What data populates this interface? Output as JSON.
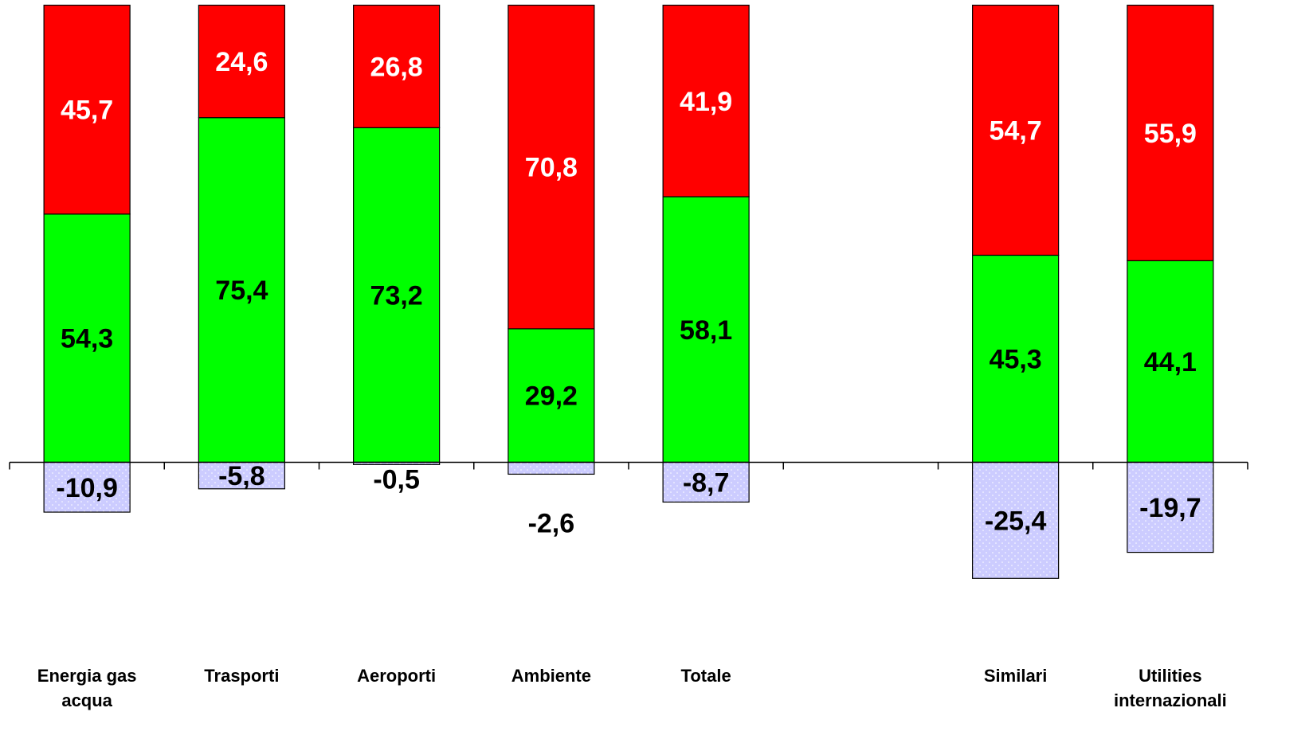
{
  "chart_data": {
    "type": "bar",
    "stacked": true,
    "categories": [
      [
        "Energia gas",
        "acqua"
      ],
      [
        "Trasporti"
      ],
      [
        "Aeroporti"
      ],
      [
        "Ambiente"
      ],
      [
        "Totale"
      ],
      [],
      [
        "Similari"
      ],
      [
        "Utilities",
        "internazionali"
      ]
    ],
    "series": [
      {
        "color": "#00ff00",
        "label_color": "#000000",
        "values": [
          54.3,
          75.4,
          73.2,
          29.2,
          58.1,
          null,
          45.3,
          44.1
        ],
        "labels": [
          "54,3",
          "75,4",
          "73,2",
          "29,2",
          "58,1",
          null,
          "45,3",
          "44,1"
        ]
      },
      {
        "color": "#ff0000",
        "label_color": "#ffffff",
        "values": [
          45.7,
          24.6,
          26.8,
          70.8,
          41.9,
          null,
          54.7,
          55.9
        ],
        "labels": [
          "45,7",
          "24,6",
          "26,8",
          "70,8",
          "41,9",
          null,
          "54,7",
          "55,9"
        ]
      },
      {
        "color": "#ccccff",
        "pattern": "dotted",
        "label_color": "#000000",
        "values": [
          -10.9,
          -5.8,
          -0.5,
          -2.6,
          -8.7,
          null,
          -25.4,
          -19.7
        ],
        "labels": [
          "-10,9",
          "-5,8",
          "-0,5",
          "-2,6",
          "-8,7",
          null,
          "-25,4",
          "-19,7"
        ]
      }
    ],
    "ylim": [
      -27,
      100
    ],
    "grid": false,
    "legend": "none",
    "axis_color": "#000000"
  }
}
